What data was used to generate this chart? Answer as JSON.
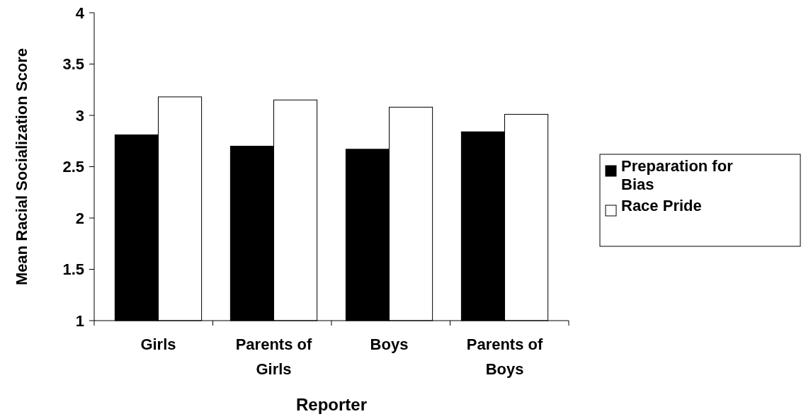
{
  "chart_data": {
    "type": "bar",
    "xlabel": "Reporter",
    "ylabel": "Mean Racial Socialization Score",
    "categories": [
      "Girls",
      "Parents of Girls",
      "Boys",
      "Parents of Boys"
    ],
    "series": [
      {
        "name": "Preparation for Bias",
        "color": "#000000",
        "values": [
          2.81,
          2.7,
          2.67,
          2.84
        ]
      },
      {
        "name": "Race Pride",
        "color": "#ffffff",
        "values": [
          3.18,
          3.15,
          3.08,
          3.01
        ]
      }
    ],
    "ylim": [
      1,
      4
    ],
    "yticks": [
      1,
      1.5,
      2,
      2.5,
      3,
      3.5,
      4
    ],
    "grid": false,
    "legend": "right"
  }
}
